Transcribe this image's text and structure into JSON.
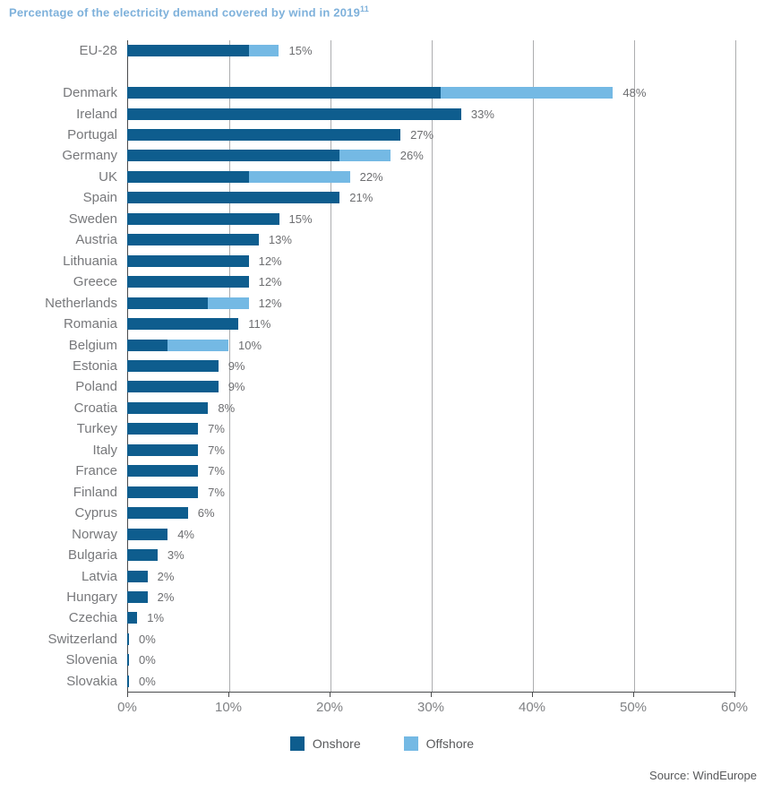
{
  "title": "Percentage of the electricity demand covered by wind in 2019",
  "title_superscript": "11",
  "source": "Source: WindEurope",
  "colors": {
    "onshore": "#0E5D8E",
    "offshore": "#74B9E4",
    "title": "#7EB1DB",
    "gridline": "#ACADAF",
    "axis": "#4A4B4D"
  },
  "legend": {
    "items": [
      {
        "label": "Onshore",
        "color": "#0E5D8E"
      },
      {
        "label": "Offshore",
        "color": "#74B9E4"
      }
    ]
  },
  "chart_data": {
    "type": "bar",
    "orientation": "horizontal",
    "stacked": true,
    "title": "Percentage of the electricity demand covered by wind in 2019",
    "xlabel": "",
    "ylabel": "",
    "xlim": [
      0,
      60
    ],
    "x_tick_values": [
      0,
      10,
      20,
      30,
      40,
      50,
      60
    ],
    "x_tick_labels": [
      "0%",
      "10%",
      "20%",
      "30%",
      "40%",
      "50%",
      "60%"
    ],
    "grid": "vertical",
    "legend_position": "bottom",
    "series_names": [
      "Onshore",
      "Offshore"
    ],
    "rows": [
      {
        "country": "EU-28",
        "onshore": 12,
        "offshore": 3,
        "total_label": "15%",
        "spacer_after": true
      },
      {
        "country": "Denmark",
        "onshore": 31,
        "offshore": 17,
        "total_label": "48%"
      },
      {
        "country": "Ireland",
        "onshore": 33,
        "offshore": 0,
        "total_label": "33%"
      },
      {
        "country": "Portugal",
        "onshore": 27,
        "offshore": 0,
        "total_label": "27%"
      },
      {
        "country": "Germany",
        "onshore": 21,
        "offshore": 5,
        "total_label": "26%"
      },
      {
        "country": "UK",
        "onshore": 12,
        "offshore": 10,
        "total_label": "22%"
      },
      {
        "country": "Spain",
        "onshore": 21,
        "offshore": 0,
        "total_label": "21%"
      },
      {
        "country": "Sweden",
        "onshore": 15,
        "offshore": 0,
        "total_label": "15%"
      },
      {
        "country": "Austria",
        "onshore": 13,
        "offshore": 0,
        "total_label": "13%"
      },
      {
        "country": "Lithuania",
        "onshore": 12,
        "offshore": 0,
        "total_label": "12%"
      },
      {
        "country": "Greece",
        "onshore": 12,
        "offshore": 0,
        "total_label": "12%"
      },
      {
        "country": "Netherlands",
        "onshore": 8,
        "offshore": 4,
        "total_label": "12%"
      },
      {
        "country": "Romania",
        "onshore": 11,
        "offshore": 0,
        "total_label": "11%"
      },
      {
        "country": "Belgium",
        "onshore": 4,
        "offshore": 6,
        "total_label": "10%"
      },
      {
        "country": "Estonia",
        "onshore": 9,
        "offshore": 0,
        "total_label": "9%"
      },
      {
        "country": "Poland",
        "onshore": 9,
        "offshore": 0,
        "total_label": "9%"
      },
      {
        "country": "Croatia",
        "onshore": 8,
        "offshore": 0,
        "total_label": "8%"
      },
      {
        "country": "Turkey",
        "onshore": 7,
        "offshore": 0,
        "total_label": "7%"
      },
      {
        "country": "Italy",
        "onshore": 7,
        "offshore": 0,
        "total_label": "7%"
      },
      {
        "country": "France",
        "onshore": 7,
        "offshore": 0,
        "total_label": "7%"
      },
      {
        "country": "Finland",
        "onshore": 7,
        "offshore": 0,
        "total_label": "7%"
      },
      {
        "country": "Cyprus",
        "onshore": 6,
        "offshore": 0,
        "total_label": "6%"
      },
      {
        "country": "Norway",
        "onshore": 4,
        "offshore": 0,
        "total_label": "4%"
      },
      {
        "country": "Bulgaria",
        "onshore": 3,
        "offshore": 0,
        "total_label": "3%"
      },
      {
        "country": "Latvia",
        "onshore": 2,
        "offshore": 0,
        "total_label": "2%"
      },
      {
        "country": "Hungary",
        "onshore": 2,
        "offshore": 0,
        "total_label": "2%"
      },
      {
        "country": "Czechia",
        "onshore": 1,
        "offshore": 0,
        "total_label": "1%"
      },
      {
        "country": "Switzerland",
        "onshore": 0,
        "offshore": 0,
        "total_label": "0%"
      },
      {
        "country": "Slovenia",
        "onshore": 0,
        "offshore": 0,
        "total_label": "0%"
      },
      {
        "country": "Slovakia",
        "onshore": 0,
        "offshore": 0,
        "total_label": "0%"
      }
    ]
  }
}
